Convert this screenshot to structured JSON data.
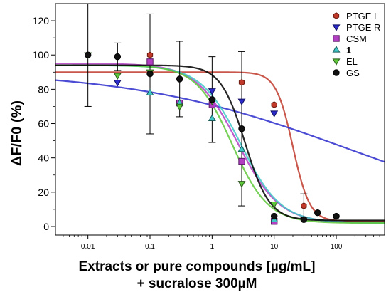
{
  "chart_data": {
    "type": "scatter",
    "xscale": "log",
    "xlim": [
      0.003,
      600
    ],
    "ylim": [
      -5,
      130
    ],
    "xlabel_line1": "Extracts or pure compounds [µg/mL]",
    "xlabel_line2": "+ sucralose 300µM",
    "ylabel": "ΔF/F0 (%)",
    "x_ticks": [
      {
        "value": 0.01,
        "label": "0.01"
      },
      {
        "value": 0.1,
        "label": "0.1"
      },
      {
        "value": 1,
        "label": "1"
      },
      {
        "value": 10,
        "label": "10"
      },
      {
        "value": 100,
        "label": "100"
      }
    ],
    "y_ticks": [
      {
        "value": 0,
        "label": "0"
      },
      {
        "value": 20,
        "label": "20"
      },
      {
        "value": 40,
        "label": "40"
      },
      {
        "value": 60,
        "label": "60"
      },
      {
        "value": 80,
        "label": "80"
      },
      {
        "value": 100,
        "label": "100"
      },
      {
        "value": 120,
        "label": "120"
      }
    ],
    "legend_position": "top-right",
    "series": [
      {
        "name": "PTGE L",
        "marker": "hexagon",
        "color": "#c0392b",
        "edge": "#6e1a10",
        "points": [
          [
            0.1,
            100
          ],
          [
            0.3,
            86
          ],
          [
            3,
            84
          ],
          [
            10,
            71
          ],
          [
            30,
            12
          ]
        ],
        "errors": [
          0,
          0,
          0,
          0,
          7
        ],
        "fit": {
          "top": 90,
          "bottom": 3,
          "ec50": 20,
          "hill": 3.2
        }
      },
      {
        "name": "PTGE R",
        "marker": "triangle-down",
        "color": "#2b2bcc",
        "edge": "#101060",
        "points": [
          [
            0.03,
            84
          ],
          [
            1,
            79
          ],
          [
            3,
            73
          ],
          [
            10,
            66
          ]
        ],
        "errors": [
          0,
          0,
          0,
          0
        ],
        "fit": {
          "top": 91,
          "bottom": 0,
          "ec50": 150,
          "hill": 0.25
        }
      },
      {
        "name": "CSM",
        "marker": "square",
        "color": "#b23fc2",
        "edge": "#5a1a66",
        "points": [
          [
            0.1,
            96
          ],
          [
            0.3,
            72
          ],
          [
            1,
            71
          ],
          [
            3,
            38
          ],
          [
            10,
            3
          ]
        ],
        "errors": [
          0,
          0,
          0,
          0,
          0
        ],
        "fit": {
          "top": 95,
          "bottom": 2,
          "ec50": 2.6,
          "hill": 1.3
        }
      },
      {
        "name": "1",
        "marker": "triangle-up",
        "color": "#40c8c8",
        "edge": "#1a5a5a",
        "points": [
          [
            0.1,
            78
          ],
          [
            0.3,
            72
          ],
          [
            1,
            63
          ],
          [
            3,
            45
          ],
          [
            10,
            4
          ]
        ],
        "errors": [
          0,
          0,
          0,
          0,
          0
        ],
        "fit": {
          "top": 94,
          "bottom": 2,
          "ec50": 2.9,
          "hill": 1.35
        }
      },
      {
        "name": "EL",
        "marker": "triangle-down",
        "color": "#5fc83a",
        "edge": "#2a5a1a",
        "points": [
          [
            0.01,
            100
          ],
          [
            0.03,
            88
          ],
          [
            0.1,
            90
          ],
          [
            0.3,
            70
          ],
          [
            1,
            73
          ],
          [
            3,
            25
          ],
          [
            10,
            13
          ]
        ],
        "errors": [
          0,
          0,
          0,
          0,
          0,
          0,
          0
        ],
        "fit": {
          "top": 94,
          "bottom": 2,
          "ec50": 2.1,
          "hill": 1.5
        }
      },
      {
        "name": "GS",
        "marker": "circle",
        "color": "#111111",
        "edge": "#000000",
        "points": [
          [
            0.01,
            100
          ],
          [
            0.03,
            99
          ],
          [
            0.1,
            89
          ],
          [
            0.3,
            86
          ],
          [
            1,
            74
          ],
          [
            3,
            57
          ],
          [
            10,
            6
          ],
          [
            30,
            4
          ],
          [
            50,
            8
          ],
          [
            100,
            6
          ]
        ],
        "errors": [
          30,
          8,
          35,
          22,
          25,
          45,
          0,
          0,
          0,
          0
        ],
        "fit": {
          "top": 94,
          "bottom": 3.5,
          "ec50": 3.4,
          "hill": 2.2
        }
      }
    ]
  }
}
